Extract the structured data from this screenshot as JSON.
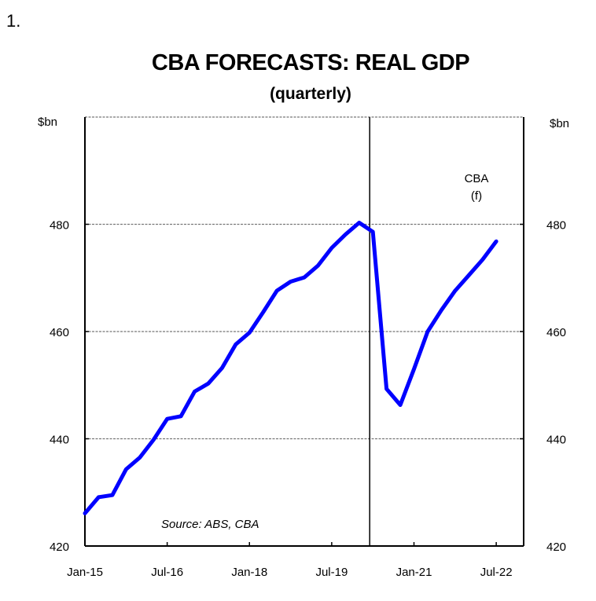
{
  "figure_number": "1.",
  "chart_data": {
    "type": "line",
    "title": "CBA FORECASTS: REAL GDP",
    "subtitle": "(quarterly)",
    "ylabel_left": "$bn",
    "ylabel_right": "$bn",
    "ylim": [
      420,
      500
    ],
    "yticks": [
      420,
      440,
      460,
      480
    ],
    "xtick_labels": [
      "Jan-15",
      "Jul-16",
      "Jan-18",
      "Jul-19",
      "Jan-21",
      "Jul-22"
    ],
    "xtick_quarter_index": [
      0,
      6,
      12,
      18,
      24,
      30
    ],
    "x_quarters_total": 32,
    "grid": true,
    "forecast_divider_quarter": 21,
    "annotation_forecast": [
      "CBA",
      "(f)"
    ],
    "source": "Source: ABS, CBA",
    "series": [
      {
        "name": "Real GDP",
        "color": "#0000ff",
        "start": "Jan-15",
        "values": [
          426.1,
          429.1,
          429.5,
          434.3,
          436.5,
          439.8,
          443.7,
          444.2,
          448.8,
          450.3,
          453.2,
          457.6,
          459.8,
          463.6,
          467.6,
          469.3,
          470.1,
          472.3,
          475.6,
          478.1,
          480.3,
          478.6,
          449.3,
          446.3,
          453.0,
          460.0,
          464.0,
          467.6,
          470.5,
          473.4,
          476.8
        ]
      }
    ]
  }
}
